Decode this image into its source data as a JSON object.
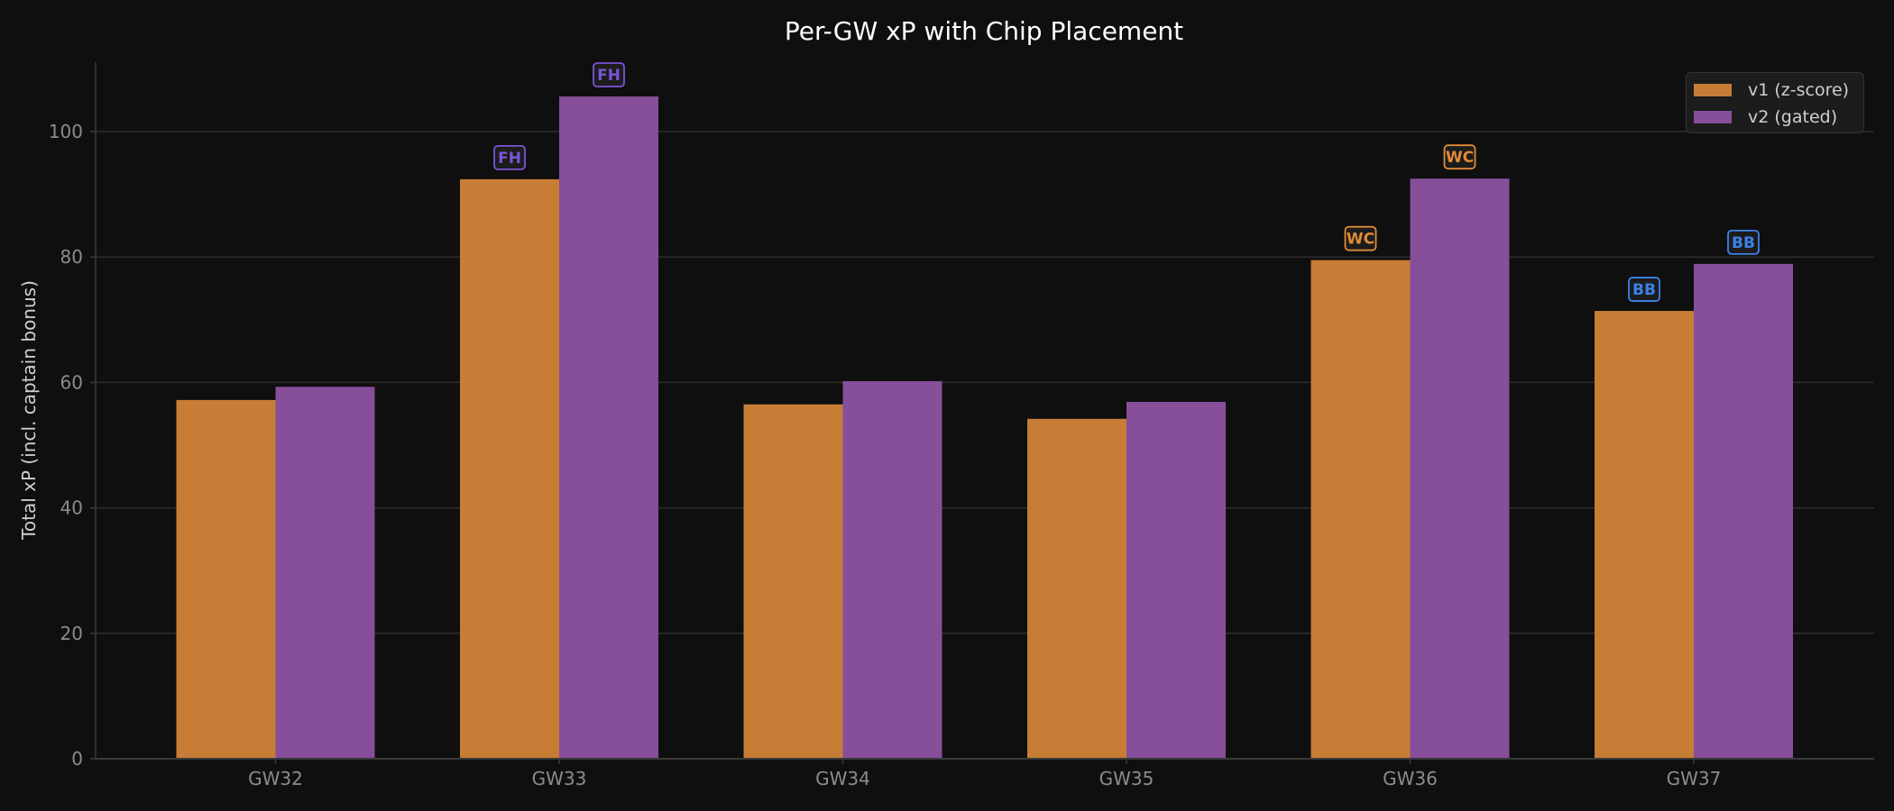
{
  "chart_data": {
    "type": "bar",
    "title": "Per-GW xP with Chip Placement",
    "xlabel": "",
    "ylabel": "Total xP (incl. captain bonus)",
    "ylim": [
      0,
      111
    ],
    "yticks": [
      0,
      20,
      40,
      60,
      80,
      100
    ],
    "grid": true,
    "legend_position": "upper right",
    "categories": [
      "GW32",
      "GW33",
      "GW34",
      "GW35",
      "GW36",
      "GW37"
    ],
    "series": [
      {
        "name": "v1 (z-score)",
        "color": "#c77d36",
        "values": [
          57.2,
          92.4,
          56.5,
          54.2,
          79.5,
          71.4
        ]
      },
      {
        "name": "v2 (gated)",
        "color": "#874e9a",
        "values": [
          59.3,
          105.6,
          60.2,
          56.9,
          92.5,
          78.9
        ]
      }
    ],
    "annotations": [
      {
        "category": "GW33",
        "series": 0,
        "label": "FH",
        "color": "#7b55d6"
      },
      {
        "category": "GW33",
        "series": 1,
        "label": "FH",
        "color": "#7b55d6"
      },
      {
        "category": "GW36",
        "series": 0,
        "label": "WC",
        "color": "#e08b38"
      },
      {
        "category": "GW36",
        "series": 1,
        "label": "WC",
        "color": "#e08b38"
      },
      {
        "category": "GW37",
        "series": 0,
        "label": "BB",
        "color": "#3d82e8"
      },
      {
        "category": "GW37",
        "series": 1,
        "label": "BB",
        "color": "#3d82e8"
      }
    ]
  },
  "colors": {
    "background": "#0f0f0f",
    "grid": "#2e2e2e",
    "axis": "#3a3a3a",
    "tick_text": "#8c8c8c",
    "label_text": "#cfcfcf",
    "annotation_bg": "#1c1c1c"
  }
}
